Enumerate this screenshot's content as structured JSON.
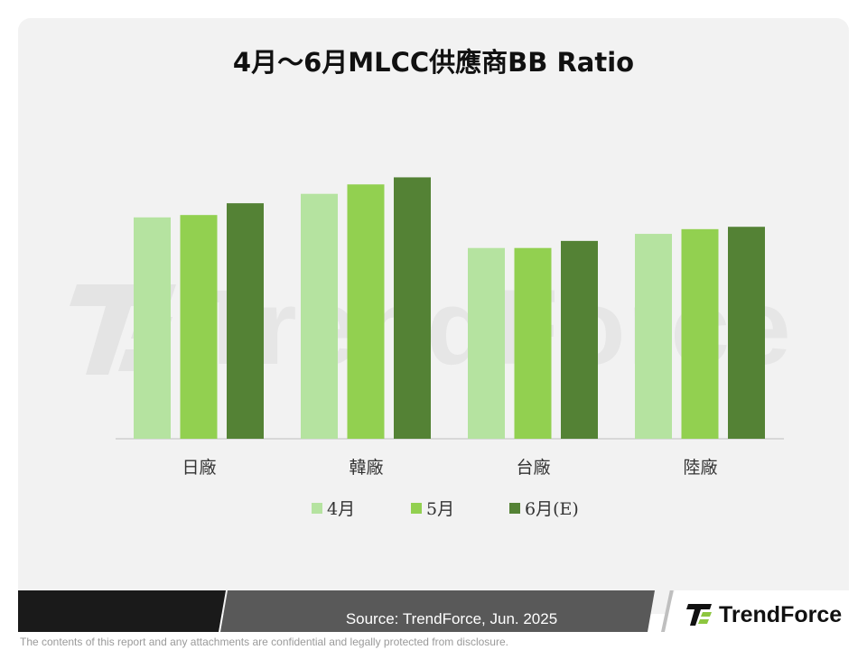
{
  "chart_data": {
    "type": "bar",
    "title": "4月～6月MLCC供應商BB Ratio",
    "categories": [
      "日廠",
      "韓廠",
      "台廠",
      "陸廠"
    ],
    "series": [
      {
        "name": "4月",
        "values": [
          0.94,
          1.04,
          0.81,
          0.87
        ],
        "color": "#b5e3a0"
      },
      {
        "name": "5月",
        "values": [
          0.95,
          1.08,
          0.81,
          0.89
        ],
        "color": "#92d050"
      },
      {
        "name": "6月(E)",
        "values": [
          1.0,
          1.11,
          0.84,
          0.9
        ],
        "color": "#548235"
      }
    ],
    "ylim": [
      0,
      1.15
    ],
    "grid": false,
    "legend": "bottom",
    "xlabel": "",
    "ylabel": ""
  },
  "footer": {
    "source": "Source: TrendForce, Jun. 2025",
    "brand": "TrendForce",
    "disclaimer": "The contents of this report and any attachments are confidential and legally protected from disclosure."
  },
  "watermark": {
    "text": "TrendForce"
  }
}
